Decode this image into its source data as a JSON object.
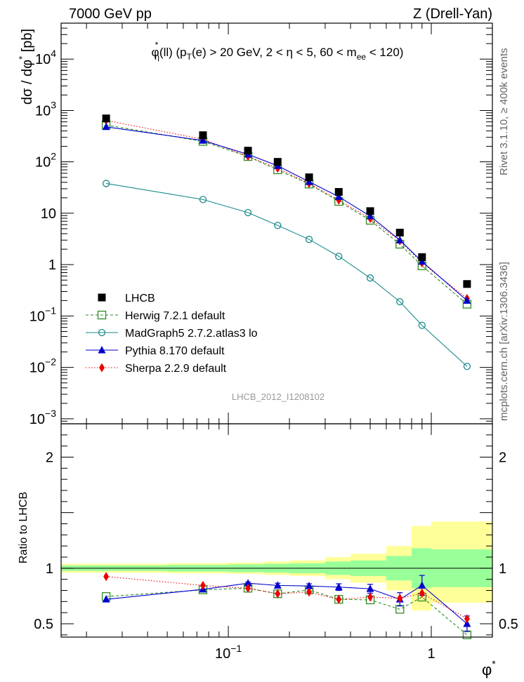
{
  "header": {
    "left": "7000 GeV pp",
    "right": "Z (Drell-Yan)"
  },
  "side_labels": {
    "rivet": "Rivet 3.1.10, ≥ 400k events",
    "mcplots": "mcplots.cern.ch [arXiv:1306.3436]"
  },
  "watermark": "LHCB_2012_I1208102",
  "chart_data": [
    {
      "type": "scatter",
      "panel": "main",
      "title": "φ*η(ll) (pT(e) > 20 GeV, 2 < η < 5, 60 < mee < 120)",
      "xlabel": "φ*",
      "ylabel": "dσ / dφ* [pb]",
      "xscale": "log",
      "yscale": "log",
      "xlim": [
        0.015,
        2.0
      ],
      "ylim": [
        0.0008,
        50000
      ],
      "y_ticks": [
        {
          "v": 0.001,
          "b": "10",
          "e": "−3"
        },
        {
          "v": 0.01,
          "b": "10",
          "e": "−2"
        },
        {
          "v": 0.1,
          "b": "10",
          "e": "−1"
        },
        {
          "v": 1,
          "b": "1",
          "e": ""
        },
        {
          "v": 10,
          "b": "10",
          "e": ""
        },
        {
          "v": 100,
          "b": "10",
          "e": "2"
        },
        {
          "v": 1000,
          "b": "10",
          "e": "3"
        },
        {
          "v": 10000,
          "b": "10",
          "e": "4"
        }
      ],
      "x": [
        0.025,
        0.075,
        0.125,
        0.175,
        0.25,
        0.35,
        0.5,
        0.7,
        0.9,
        1.5
      ],
      "legend_position": "bottom-left",
      "series": [
        {
          "name": "LHCB",
          "color": "#000000",
          "marker": "filled-square",
          "line": "none",
          "values": [
            700,
            330,
            165,
            100,
            50,
            26,
            11,
            4.2,
            1.4,
            0.42
          ]
        },
        {
          "name": "Herwig 7.2.1 default",
          "color": "#2e8b22",
          "marker": "open-square",
          "line": "dashed",
          "values": [
            520,
            250,
            127,
            70,
            37,
            17,
            7.3,
            2.5,
            0.95,
            0.17
          ]
        },
        {
          "name": "MadGraph5 2.7.2.atlas3 lo",
          "color": "#1a8a8a",
          "marker": "open-circle",
          "line": "solid",
          "values": [
            38,
            18.5,
            10.3,
            5.8,
            3.1,
            1.45,
            0.55,
            0.19,
            0.066,
            0.0105
          ]
        },
        {
          "name": "Pythia 8.170 default",
          "color": "#0000cc",
          "marker": "filled-triangle",
          "line": "solid",
          "values": [
            480,
            260,
            140,
            84,
            41,
            21,
            8.8,
            3.0,
            1.15,
            0.2
          ]
        },
        {
          "name": "Sherpa 2.2.9 default",
          "color": "#ee0000",
          "marker": "filled-diamond",
          "line": "dotted",
          "values": [
            640,
            275,
            128,
            75,
            38,
            18,
            7.9,
            2.9,
            1.08,
            0.22
          ]
        }
      ]
    },
    {
      "type": "scatter",
      "panel": "ratio",
      "ylabel": "Ratio to LHCB",
      "xlabel": "φ*",
      "xscale": "log",
      "xlim": [
        0.015,
        2.0
      ],
      "ylim": [
        0.38,
        2.3
      ],
      "y_ticks": [
        0.5,
        1,
        2
      ],
      "x_ticks": [
        {
          "v": 0.1,
          "b": "10",
          "e": "−1"
        },
        {
          "v": 1,
          "b": "1",
          "e": ""
        }
      ],
      "x": [
        0.025,
        0.075,
        0.125,
        0.175,
        0.25,
        0.35,
        0.5,
        0.7,
        0.9,
        1.5
      ],
      "bin_edges": [
        0.015,
        0.05,
        0.1,
        0.15,
        0.2,
        0.3,
        0.4,
        0.6,
        0.8,
        1.0,
        2.0
      ],
      "band_inner": [
        [
          0.975,
          1.025
        ],
        [
          0.97,
          1.03
        ],
        [
          0.965,
          1.035
        ],
        [
          0.96,
          1.04
        ],
        [
          0.955,
          1.045
        ],
        [
          0.94,
          1.06
        ],
        [
          0.93,
          1.07
        ],
        [
          0.89,
          1.11
        ],
        [
          0.82,
          1.18
        ],
        [
          0.83,
          1.17
        ]
      ],
      "band_outer": [
        [
          0.96,
          1.04
        ],
        [
          0.955,
          1.045
        ],
        [
          0.95,
          1.05
        ],
        [
          0.94,
          1.06
        ],
        [
          0.93,
          1.07
        ],
        [
          0.9,
          1.1
        ],
        [
          0.87,
          1.13
        ],
        [
          0.8,
          1.2
        ],
        [
          0.62,
          1.38
        ],
        [
          0.69,
          1.42
        ]
      ],
      "series": [
        {
          "name": "Herwig 7.2.1 default",
          "color": "#2e8b22",
          "marker": "open-square",
          "line": "dashed",
          "values": [
            0.745,
            0.805,
            0.82,
            0.77,
            0.805,
            0.72,
            0.715,
            0.63,
            0.74,
            0.4
          ]
        },
        {
          "name": "Pythia 8.170 default",
          "color": "#0000cc",
          "marker": "filled-triangle",
          "line": "solid",
          "values": [
            0.72,
            0.81,
            0.865,
            0.845,
            0.84,
            0.83,
            0.815,
            0.72,
            0.845,
            0.5
          ],
          "errors": [
            0.0,
            0.0,
            0.01,
            0.02,
            0.02,
            0.03,
            0.04,
            0.06,
            0.09,
            0.07
          ]
        },
        {
          "name": "Sherpa 2.2.9 default",
          "color": "#ee0000",
          "marker": "filled-diamond",
          "line": "dotted",
          "values": [
            0.925,
            0.845,
            0.82,
            0.77,
            0.785,
            0.72,
            0.74,
            0.73,
            0.775,
            0.545
          ]
        }
      ]
    }
  ]
}
